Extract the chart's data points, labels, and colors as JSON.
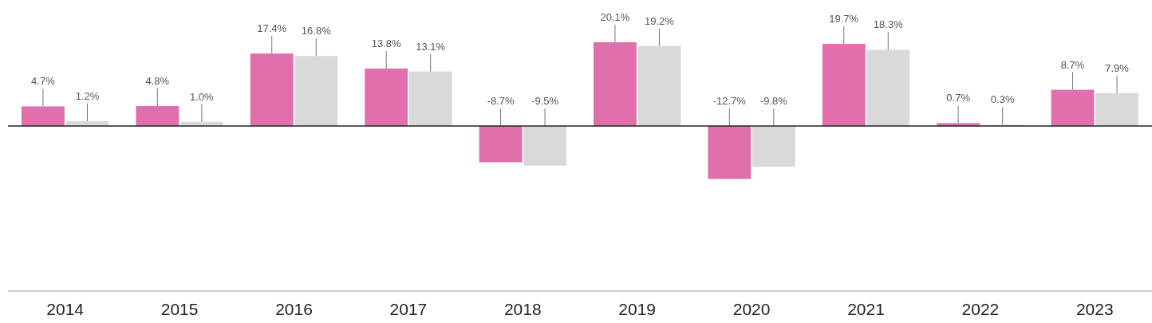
{
  "chart_data": {
    "type": "bar",
    "categories": [
      "2014",
      "2015",
      "2016",
      "2017",
      "2018",
      "2019",
      "2020",
      "2021",
      "2022",
      "2023"
    ],
    "series": [
      {
        "color": "#e06fac",
        "values": [
          4.7,
          4.8,
          17.4,
          13.8,
          -8.7,
          20.1,
          -12.7,
          19.7,
          0.7,
          8.7
        ],
        "value_labels": [
          "4.7%",
          "4.8%",
          "17.4%",
          "13.8%",
          "-8.7%",
          "20.1%",
          "-12.7%",
          "19.7%",
          "0.7%",
          "8.7%"
        ]
      },
      {
        "color": "#d9d9d9",
        "values": [
          1.2,
          1.0,
          16.8,
          13.1,
          -9.5,
          19.2,
          -9.8,
          18.3,
          0.3,
          7.9
        ],
        "value_labels": [
          "1.2%",
          "1.0%",
          "16.8%",
          "13.1%",
          "-9.5%",
          "19.2%",
          "-9.8%",
          "18.3%",
          "0.3%",
          "7.9%"
        ]
      }
    ]
  }
}
